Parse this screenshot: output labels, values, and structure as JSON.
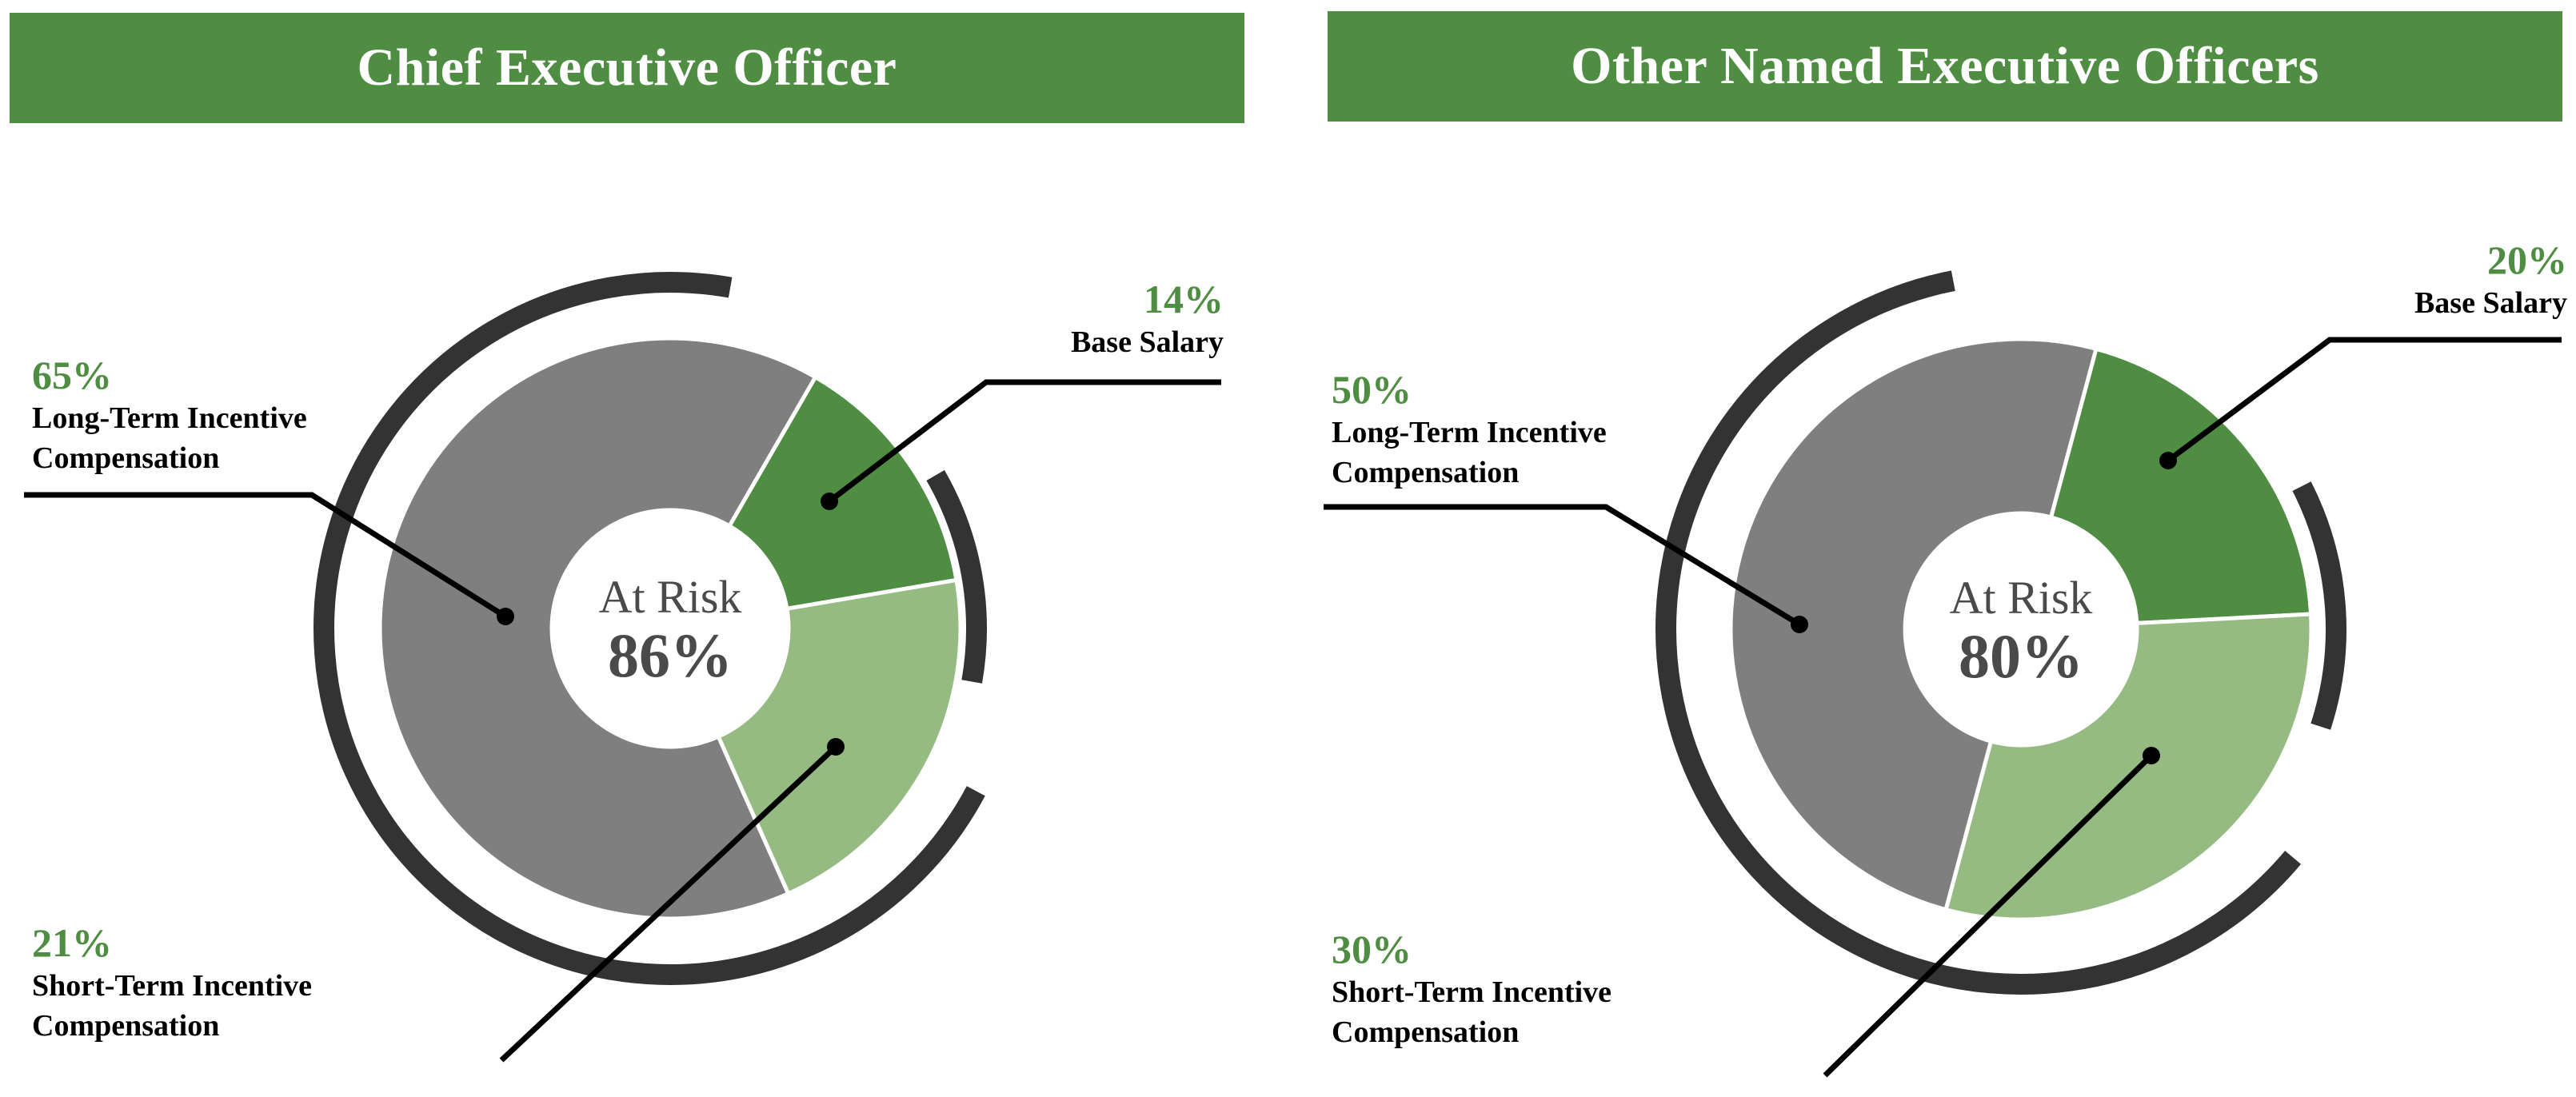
{
  "panels": [
    {
      "title": "Chief Executive Officer",
      "center_label": "At Risk",
      "center_value": "86%",
      "segments": [
        {
          "name": "Base Salary",
          "pct_label": "14%",
          "line1": "Base Salary",
          "line2": ""
        },
        {
          "name": "Short-Term Incentive Compensation",
          "pct_label": "21%",
          "line1": "Short-Term Incentive",
          "line2": "Compensation"
        },
        {
          "name": "Long-Term Incentive Compensation",
          "pct_label": "65%",
          "line1": "Long-Term Incentive",
          "line2": "Compensation"
        }
      ]
    },
    {
      "title": "Other Named Executive Officers",
      "center_label": "At Risk",
      "center_value": "80%",
      "segments": [
        {
          "name": "Base Salary",
          "pct_label": "20%",
          "line1": "Base Salary",
          "line2": ""
        },
        {
          "name": "Short-Term Incentive Compensation",
          "pct_label": "30%",
          "line1": "Short-Term Incentive",
          "line2": "Compensation"
        },
        {
          "name": "Long-Term Incentive Compensation",
          "pct_label": "50%",
          "line1": "Long-Term Incentive",
          "line2": "Compensation"
        }
      ]
    }
  ],
  "colors": {
    "banner": "#4f8d43",
    "base_salary": "#4f8d43",
    "short_term": "#95bb83",
    "long_term": "#7f7f7f",
    "outer_arc": "#333333",
    "center_text": "#4a4a4a",
    "pct_text": "#4f8d43"
  },
  "chart_data": [
    {
      "type": "pie",
      "title": "Chief Executive Officer",
      "categories": [
        "Base Salary",
        "Short-Term Incentive Compensation",
        "Long-Term Incentive Compensation"
      ],
      "values": [
        14,
        21,
        65
      ],
      "center_annotation": "At Risk 86%",
      "donut": true
    },
    {
      "type": "pie",
      "title": "Other Named Executive Officers",
      "categories": [
        "Base Salary",
        "Short-Term Incentive Compensation",
        "Long-Term Incentive Compensation"
      ],
      "values": [
        20,
        30,
        50
      ],
      "center_annotation": "At Risk 80%",
      "donut": true
    }
  ]
}
